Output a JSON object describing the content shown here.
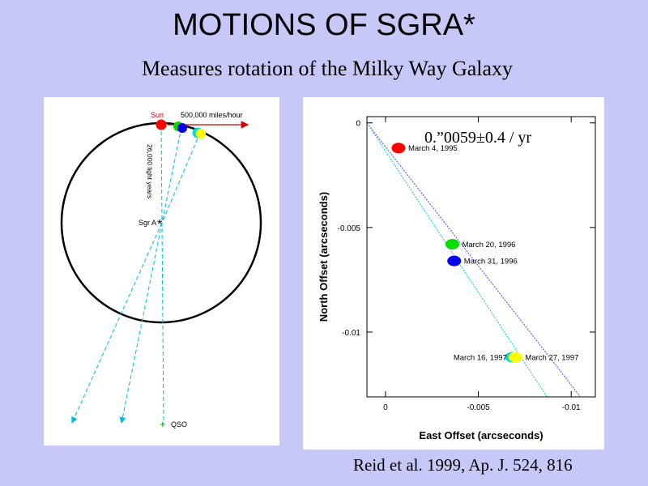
{
  "title": "MOTIONS OF SGRA*",
  "subtitle": "Measures rotation of the Milky Way Galaxy",
  "citation": "Reid et al. 1999, Ap. J. 524, 816",
  "left_diagram": {
    "sun_label": "Sun",
    "speed_label": "500,000 miles/hour",
    "distance_label": "26,000 light years",
    "sgra_label": "Sgr A",
    "sgra_symbol": "*",
    "qso_label": "QSO",
    "qso_symbol": "+"
  },
  "chart_data": {
    "type": "scatter",
    "title": "0.”0059±0.4 / yr",
    "xlabel": "East Offset  (arcseconds)",
    "ylabel": "North Offset  (arcseconds)",
    "xlim": [
      0.001,
      -0.0113
    ],
    "ylim": [
      -0.0131,
      0.0003
    ],
    "x_ticks": [
      0,
      -0.005,
      -0.01
    ],
    "x_tick_labels": [
      "0",
      "-0.005",
      "-0.01"
    ],
    "y_ticks": [
      0,
      -0.005,
      -0.01
    ],
    "y_tick_labels": [
      "0",
      "-0.005",
      "-0.01"
    ],
    "points": [
      {
        "label": "March 4, 1995",
        "x": -0.0007,
        "y": -0.0012,
        "color": "#ff0000",
        "label_side": "right"
      },
      {
        "label": "March 20, 1996",
        "x": -0.0036,
        "y": -0.0058,
        "color": "#00dd00",
        "label_side": "right"
      },
      {
        "label": "March 31, 1996",
        "x": -0.0037,
        "y": -0.0066,
        "color": "#0000ee",
        "label_side": "right"
      },
      {
        "label": "March 16, 1997",
        "x": -0.0068,
        "y": -0.0112,
        "color": "#00dddd",
        "label_side": "left"
      },
      {
        "label": "March 27, 1997",
        "x": -0.007,
        "y": -0.0112,
        "color": "#ffff00",
        "label_side": "right"
      }
    ],
    "fit_lines": [
      {
        "color": "#4444ff",
        "x": [
          0.001,
          -0.0105
        ],
        "y": [
          0.0,
          -0.0131
        ]
      },
      {
        "color": "#00cccc",
        "x": [
          0.001,
          -0.0087
        ],
        "y": [
          0.0,
          -0.0131
        ]
      }
    ]
  }
}
